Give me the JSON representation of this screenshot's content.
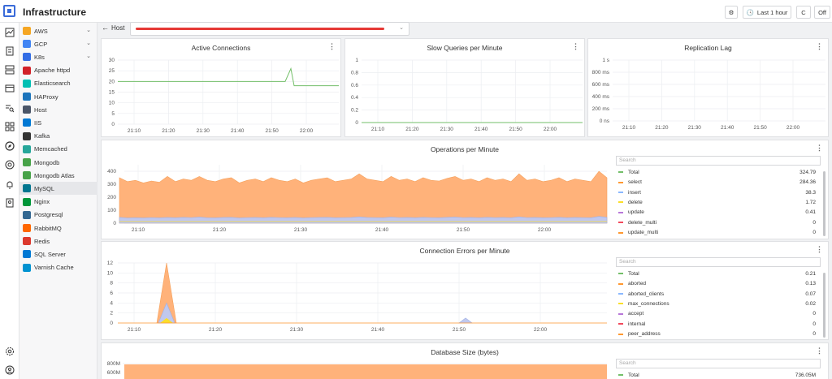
{
  "app": {
    "title": "Infrastructure"
  },
  "toolbar": {
    "time_range": "Last 1 hour",
    "refresh_label": "C",
    "autorefresh_label": "Off"
  },
  "rail_icons": [
    "monitor-icon",
    "checklist-icon",
    "server-icon",
    "window-icon",
    "search-list-icon",
    "grid-icon",
    "compass-icon",
    "target-icon",
    "bell-icon",
    "report-icon",
    "settings-icon",
    "help-icon"
  ],
  "sidebar": {
    "items": [
      {
        "label": "AWS",
        "icon": "aws-icon",
        "color": "#f5a623",
        "expandable": true
      },
      {
        "label": "GCP",
        "icon": "gcp-icon",
        "color": "#4285f4",
        "expandable": true
      },
      {
        "label": "K8s",
        "icon": "k8s-icon",
        "color": "#326ce5",
        "expandable": true
      },
      {
        "label": "Apache httpd",
        "icon": "feather-icon",
        "color": "#d22128",
        "expandable": false
      },
      {
        "label": "Elasticsearch",
        "icon": "elasticsearch-icon",
        "color": "#00bfb3",
        "expandable": false
      },
      {
        "label": "HAProxy",
        "icon": "haproxy-icon",
        "color": "#1c74bc",
        "expandable": false
      },
      {
        "label": "Host",
        "icon": "layers-icon",
        "color": "#4a5568",
        "expandable": false
      },
      {
        "label": "IIS",
        "icon": "iis-icon",
        "color": "#0078d4",
        "expandable": false
      },
      {
        "label": "Kafka",
        "icon": "kafka-icon",
        "color": "#333333",
        "expandable": false
      },
      {
        "label": "Memcached",
        "icon": "memcached-icon",
        "color": "#26a69a",
        "expandable": false
      },
      {
        "label": "Mongodb",
        "icon": "leaf-icon",
        "color": "#47a248",
        "expandable": false
      },
      {
        "label": "Mongodb Atlas",
        "icon": "leaf-icon",
        "color": "#47a248",
        "expandable": false
      },
      {
        "label": "MySQL",
        "icon": "dolphin-icon",
        "color": "#00758f",
        "expandable": false,
        "active": true
      },
      {
        "label": "Nginx",
        "icon": "nginx-icon",
        "color": "#009639",
        "expandable": false
      },
      {
        "label": "Postgresql",
        "icon": "elephant-icon",
        "color": "#336791",
        "expandable": false
      },
      {
        "label": "RabbitMQ",
        "icon": "rabbitmq-icon",
        "color": "#ff6600",
        "expandable": false
      },
      {
        "label": "Redis",
        "icon": "redis-icon",
        "color": "#dc382d",
        "expandable": false
      },
      {
        "label": "SQL Server",
        "icon": "sqlserver-icon",
        "color": "#0078d4",
        "expandable": false
      },
      {
        "label": "Varnish Cache",
        "icon": "varnish-icon",
        "color": "#0092d1",
        "expandable": false
      }
    ]
  },
  "host": {
    "label": "Host",
    "value_redacted": true
  },
  "panels": {
    "active_connections": {
      "title": "Active Connections"
    },
    "slow_queries": {
      "title": "Slow Queries per Minute"
    },
    "replication_lag": {
      "title": "Replication Lag"
    },
    "operations": {
      "title": "Operations per Minute",
      "search_placeholder": "Search"
    },
    "connection_errors": {
      "title": "Connection Errors per Minute",
      "search_placeholder": "Search"
    },
    "database_size": {
      "title": "Database Size (bytes)",
      "search_placeholder": "Search"
    }
  },
  "legends": {
    "operations": [
      {
        "name": "Total",
        "value": "324.79",
        "color": "#73bf69"
      },
      {
        "name": "select",
        "value": "284.36",
        "color": "#ff9830"
      },
      {
        "name": "insert",
        "value": "38.3",
        "color": "#8ab8ff"
      },
      {
        "name": "delete",
        "value": "1.72",
        "color": "#fade2a"
      },
      {
        "name": "update",
        "value": "0.41",
        "color": "#b877d9"
      },
      {
        "name": "delete_multi",
        "value": "0",
        "color": "#f2495c"
      },
      {
        "name": "update_multi",
        "value": "0",
        "color": "#ff9830"
      }
    ],
    "connection_errors": [
      {
        "name": "Total",
        "value": "0.21",
        "color": "#73bf69"
      },
      {
        "name": "aborted",
        "value": "0.13",
        "color": "#ff9830"
      },
      {
        "name": "aborted_clients",
        "value": "0.07",
        "color": "#8ab8ff"
      },
      {
        "name": "max_connections",
        "value": "0.02",
        "color": "#fade2a"
      },
      {
        "name": "accept",
        "value": "0",
        "color": "#b877d9"
      },
      {
        "name": "internal",
        "value": "0",
        "color": "#f2495c"
      },
      {
        "name": "peer_address",
        "value": "0",
        "color": "#ff9830"
      }
    ],
    "database_size": [
      {
        "name": "Total",
        "value": "736.05M",
        "color": "#73bf69"
      }
    ]
  },
  "chart_data": [
    {
      "id": "active_connections",
      "type": "line",
      "title": "Active Connections",
      "x": [
        "21:05",
        "21:10",
        "21:20",
        "21:30",
        "21:40",
        "21:50",
        "21:53",
        "21:55",
        "21:56",
        "21:57",
        "22:00",
        "22:05"
      ],
      "series": [
        {
          "values": [
            20,
            20,
            20,
            20,
            20,
            20,
            20,
            26,
            18,
            18,
            18,
            18
          ],
          "color": "#73bf69"
        }
      ],
      "xticks": [
        "21:10",
        "21:20",
        "21:30",
        "21:40",
        "21:50",
        "22:00"
      ],
      "yticks": [
        "0",
        "5",
        "10",
        "15",
        "20",
        "25",
        "30"
      ],
      "ylim": [
        0,
        30
      ]
    },
    {
      "id": "slow_queries",
      "type": "line",
      "title": "Slow Queries per Minute",
      "series": [
        {
          "values": [
            0,
            0
          ],
          "color": "#73bf69"
        }
      ],
      "xticks": [
        "21:10",
        "21:20",
        "21:30",
        "21:40",
        "21:50",
        "22:00"
      ],
      "yticks": [
        "0",
        "0.2",
        "0.4",
        "0.6",
        "0.8",
        "1"
      ],
      "ylim": [
        0,
        1
      ]
    },
    {
      "id": "replication_lag",
      "type": "line",
      "title": "Replication Lag",
      "series": [],
      "xticks": [
        "21:10",
        "21:20",
        "21:30",
        "21:40",
        "21:50",
        "22:00"
      ],
      "yticks": [
        "0 ns",
        "200 ms",
        "400 ms",
        "600 ms",
        "800 ms",
        "1 s"
      ],
      "ylim": [
        0,
        1
      ]
    },
    {
      "id": "operations",
      "type": "area",
      "title": "Operations per Minute",
      "xticks": [
        "21:10",
        "21:20",
        "21:30",
        "21:40",
        "21:50",
        "22:00"
      ],
      "yticks": [
        "0",
        "100",
        "200",
        "300",
        "400"
      ],
      "ylim": [
        0,
        450
      ],
      "series": [
        {
          "name": "select",
          "color": "#ffb27a",
          "values": [
            350,
            320,
            330,
            310,
            325,
            315,
            360,
            320,
            340,
            330,
            360,
            330,
            320,
            340,
            350,
            310,
            330,
            340,
            320,
            350,
            330,
            320,
            340,
            310,
            330,
            340,
            350,
            320,
            330,
            340,
            380,
            340,
            330,
            320,
            360,
            330,
            340,
            320,
            350,
            330,
            325,
            345,
            360,
            330,
            340,
            320,
            350,
            330,
            340,
            320,
            380,
            330,
            340,
            320,
            330,
            350,
            320,
            340,
            330,
            320,
            400,
            350
          ]
        },
        {
          "name": "insert",
          "color": "#c1c8ee",
          "values": [
            45,
            40,
            42,
            40,
            43,
            41,
            44,
            42,
            45,
            43,
            47,
            42,
            41,
            44,
            45,
            40,
            43,
            44,
            42,
            45,
            43,
            42,
            44,
            40,
            43,
            44,
            45,
            42,
            43,
            44,
            49,
            44,
            43,
            42,
            47,
            43,
            44,
            42,
            45,
            43,
            42,
            45,
            47,
            43,
            44,
            42,
            45,
            43,
            44,
            42,
            49,
            43,
            44,
            42,
            43,
            45,
            42,
            44,
            43,
            42,
            52,
            45
          ]
        }
      ]
    },
    {
      "id": "connection_errors",
      "type": "area",
      "title": "Connection Errors per Minute",
      "xticks": [
        "21:10",
        "21:20",
        "21:30",
        "21:40",
        "21:50",
        "22:00"
      ],
      "yticks": [
        "0",
        "2",
        "4",
        "6",
        "8",
        "10",
        "12"
      ],
      "ylim": [
        0,
        12
      ],
      "spikes": [
        {
          "x": "21:14",
          "total": 12,
          "clients": 4,
          "max": 1
        },
        {
          "x": "21:51",
          "total": 1,
          "clients": 1,
          "max": 0
        }
      ]
    },
    {
      "id": "database_size",
      "type": "area",
      "title": "Database Size (bytes)",
      "yticks": [
        "600M",
        "800M"
      ],
      "series": [
        {
          "name": "Total",
          "value_text": "736.05M",
          "color": "#ffb27a"
        }
      ]
    }
  ]
}
